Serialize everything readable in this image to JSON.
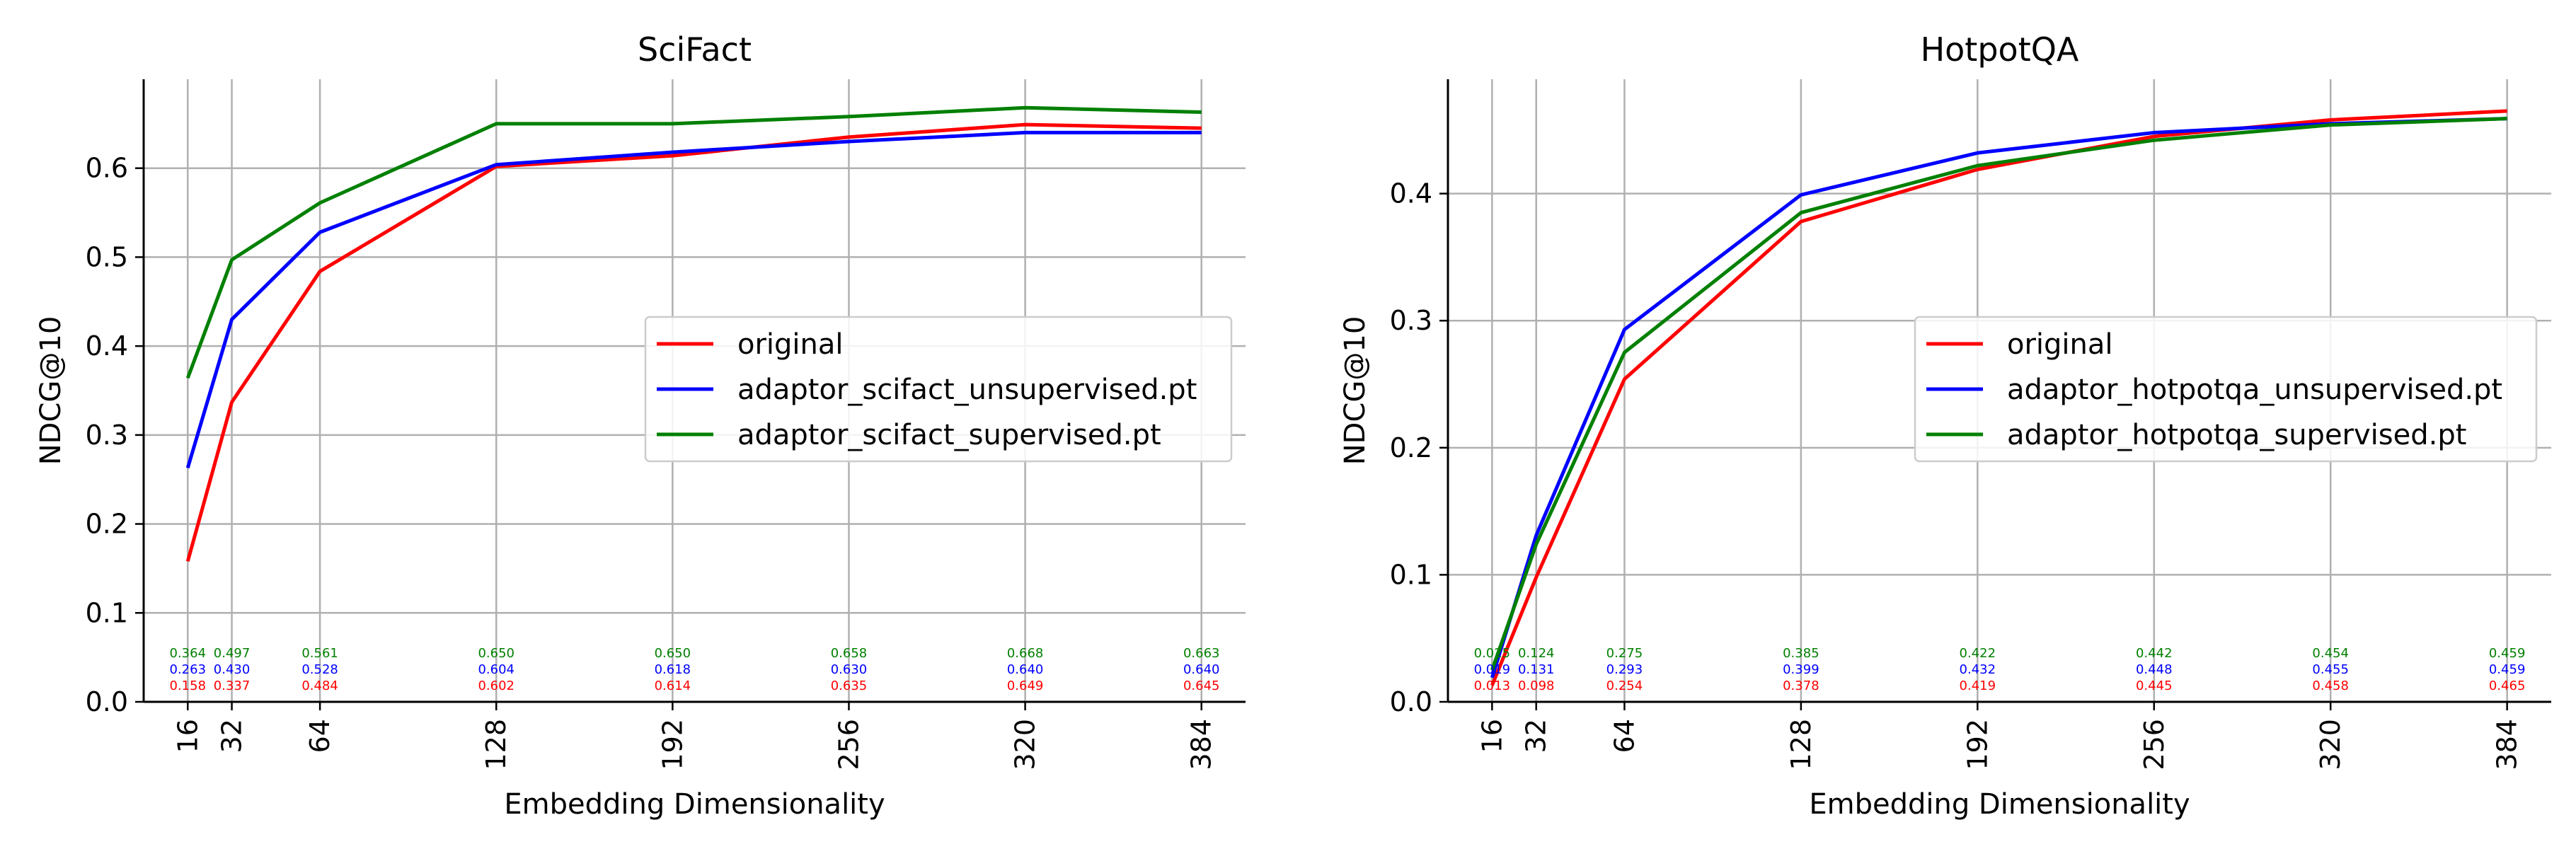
{
  "chart_data": [
    {
      "type": "line",
      "title": "SciFact",
      "xlabel": "Embedding Dimensionality",
      "ylabel": "NDCG@10",
      "x": [
        16,
        32,
        64,
        128,
        192,
        256,
        320,
        384
      ],
      "xlim": [
        0,
        400
      ],
      "ylim": [
        0,
        0.7
      ],
      "yticks": [
        0.0,
        0.1,
        0.2,
        0.3,
        0.4,
        0.5,
        0.6
      ],
      "grid": true,
      "legend_position": "center-right",
      "series": [
        {
          "name": "original",
          "color": "#ff0000",
          "values": [
            0.158,
            0.337,
            0.484,
            0.602,
            0.614,
            0.635,
            0.649,
            0.645
          ],
          "labels": [
            "0.158",
            "0.337",
            "0.484",
            "0.602",
            "0.614",
            "0.635",
            "0.649",
            "0.645"
          ]
        },
        {
          "name": "adaptor_scifact_unsupervised.pt",
          "color": "#0000ff",
          "values": [
            0.263,
            0.43,
            0.528,
            0.604,
            0.618,
            0.63,
            0.64,
            0.64
          ],
          "labels": [
            "0.263",
            "0.430",
            "0.528",
            "0.604",
            "0.618",
            "0.630",
            "0.640",
            "0.640"
          ]
        },
        {
          "name": "adaptor_scifact_supervised.pt",
          "color": "#008000",
          "values": [
            0.364,
            0.497,
            0.561,
            0.65,
            0.65,
            0.658,
            0.668,
            0.663
          ],
          "labels": [
            "0.364",
            "0.497",
            "0.561",
            "0.650",
            "0.650",
            "0.658",
            "0.668",
            "0.663"
          ]
        }
      ]
    },
    {
      "type": "line",
      "title": "HotpotQA",
      "xlabel": "Embedding Dimensionality",
      "ylabel": "NDCG@10",
      "x": [
        16,
        32,
        64,
        128,
        192,
        256,
        320,
        384
      ],
      "xlim": [
        0,
        400
      ],
      "ylim": [
        0,
        0.49
      ],
      "yticks": [
        0.0,
        0.1,
        0.2,
        0.3,
        0.4
      ],
      "grid": true,
      "legend_position": "center-right",
      "series": [
        {
          "name": "original",
          "color": "#ff0000",
          "values": [
            0.013,
            0.098,
            0.254,
            0.378,
            0.419,
            0.445,
            0.458,
            0.465
          ],
          "labels": [
            "0.013",
            "0.098",
            "0.254",
            "0.378",
            "0.419",
            "0.445",
            "0.458",
            "0.465"
          ]
        },
        {
          "name": "adaptor_hotpotqa_unsupervised.pt",
          "color": "#0000ff",
          "values": [
            0.019,
            0.131,
            0.293,
            0.399,
            0.432,
            0.448,
            0.455,
            0.459
          ],
          "labels": [
            "0.019",
            "0.131",
            "0.293",
            "0.399",
            "0.432",
            "0.448",
            "0.455",
            "0.459"
          ]
        },
        {
          "name": "adaptor_hotpotqa_supervised.pt",
          "color": "#008000",
          "values": [
            0.025,
            0.124,
            0.275,
            0.385,
            0.422,
            0.442,
            0.454,
            0.459
          ],
          "labels": [
            "0.025",
            "0.124",
            "0.275",
            "0.385",
            "0.422",
            "0.442",
            "0.454",
            "0.459"
          ]
        }
      ]
    }
  ]
}
